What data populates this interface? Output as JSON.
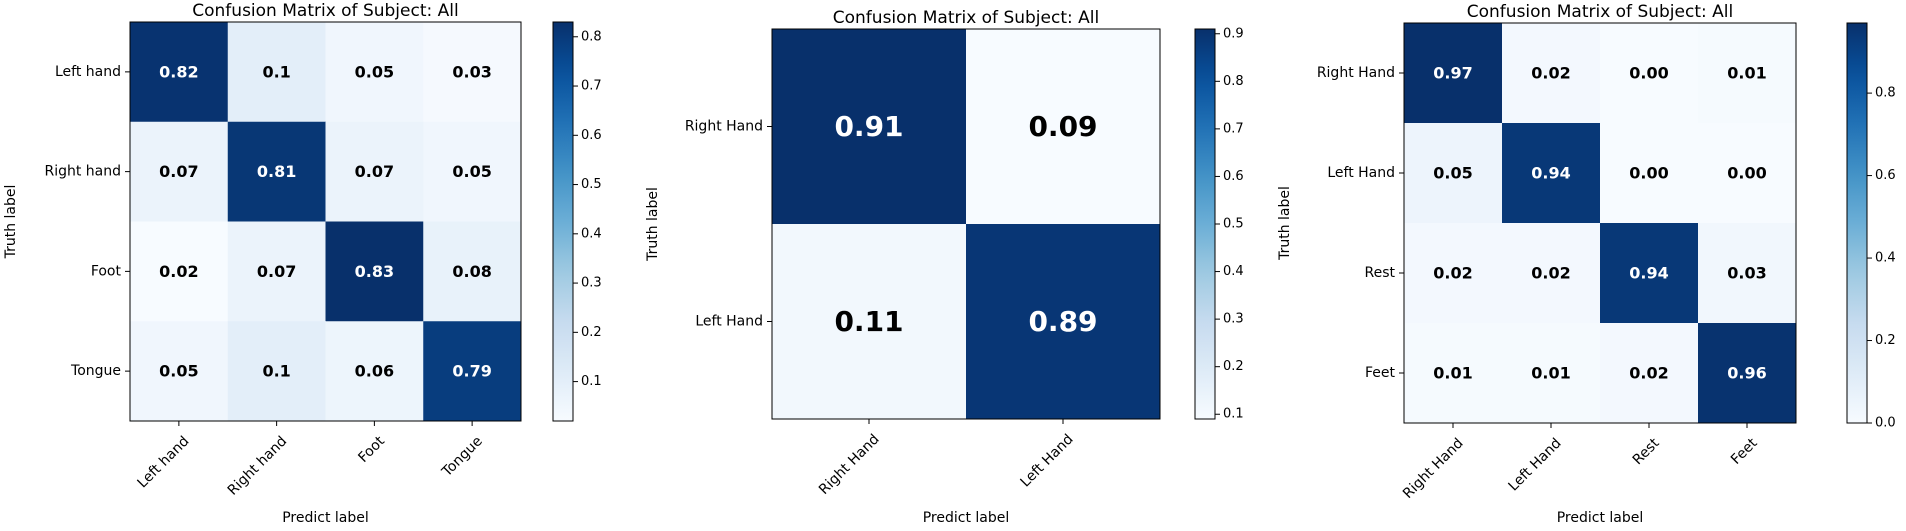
{
  "chart_data": [
    {
      "type": "heatmap",
      "title": "Confusion Matrix of Subject: All",
      "xlabel": "Predict label",
      "ylabel": "Truth label",
      "row_labels": [
        "Left hand",
        "Right hand",
        "Foot",
        "Tongue"
      ],
      "col_labels": [
        "Left hand",
        "Right hand",
        "Foot",
        "Tongue"
      ],
      "values": [
        [
          0.82,
          0.1,
          0.05,
          0.03
        ],
        [
          0.07,
          0.81,
          0.07,
          0.05
        ],
        [
          0.02,
          0.07,
          0.83,
          0.08
        ],
        [
          0.05,
          0.1,
          0.06,
          0.79
        ]
      ],
      "cell_text": [
        [
          "0.82",
          "0.1",
          "0.05",
          "0.03"
        ],
        [
          "0.07",
          "0.81",
          "0.07",
          "0.05"
        ],
        [
          "0.02",
          "0.07",
          "0.83",
          "0.08"
        ],
        [
          "0.05",
          "0.1",
          "0.06",
          "0.79"
        ]
      ],
      "colormap": "Blues",
      "vmin": 0.02,
      "vmax": 0.83,
      "colorbar_ticks": [
        0.1,
        0.2,
        0.3,
        0.4,
        0.5,
        0.6,
        0.7,
        0.8
      ],
      "colorbar_tick_labels": [
        "0.1",
        "0.2",
        "0.3",
        "0.4",
        "0.5",
        "0.6",
        "0.7",
        "0.8"
      ]
    },
    {
      "type": "heatmap",
      "title": "Confusion Matrix of Subject: All",
      "xlabel": "Predict label",
      "ylabel": "Truth label",
      "row_labels": [
        "Right Hand",
        "Left Hand"
      ],
      "col_labels": [
        "Right Hand",
        "Left Hand"
      ],
      "values": [
        [
          0.91,
          0.09
        ],
        [
          0.11,
          0.89
        ]
      ],
      "cell_text": [
        [
          "0.91",
          "0.09"
        ],
        [
          "0.11",
          "0.89"
        ]
      ],
      "colormap": "Blues",
      "vmin": 0.09,
      "vmax": 0.91,
      "colorbar_ticks": [
        0.1,
        0.2,
        0.3,
        0.4,
        0.5,
        0.6,
        0.7,
        0.8,
        0.9
      ],
      "colorbar_tick_labels": [
        "0.1",
        "0.2",
        "0.3",
        "0.4",
        "0.5",
        "0.6",
        "0.7",
        "0.8",
        "0.9"
      ]
    },
    {
      "type": "heatmap",
      "title": "Confusion Matrix of Subject: All",
      "xlabel": "Predict label",
      "ylabel": "Truth label",
      "row_labels": [
        "Right Hand",
        "Left Hand",
        "Rest",
        "Feet"
      ],
      "col_labels": [
        "Right Hand",
        "Left Hand",
        "Rest",
        "Feet"
      ],
      "values": [
        [
          0.97,
          0.02,
          0.0,
          0.01
        ],
        [
          0.05,
          0.94,
          0.0,
          0.0
        ],
        [
          0.02,
          0.02,
          0.94,
          0.03
        ],
        [
          0.01,
          0.01,
          0.02,
          0.96
        ]
      ],
      "cell_text": [
        [
          "0.97",
          "0.02",
          "0.00",
          "0.01"
        ],
        [
          "0.05",
          "0.94",
          "0.00",
          "0.00"
        ],
        [
          "0.02",
          "0.02",
          "0.94",
          "0.03"
        ],
        [
          "0.01",
          "0.01",
          "0.02",
          "0.96"
        ]
      ],
      "colormap": "Blues",
      "vmin": 0.0,
      "vmax": 0.97,
      "colorbar_ticks": [
        0.0,
        0.2,
        0.4,
        0.6,
        0.8
      ],
      "colorbar_tick_labels": [
        "0.0",
        "0.2",
        "0.4",
        "0.6",
        "0.8"
      ]
    }
  ]
}
